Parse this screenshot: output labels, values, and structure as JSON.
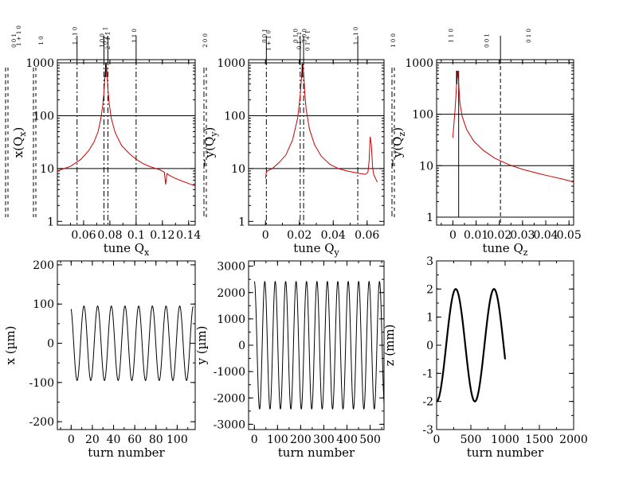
{
  "chart_data": [
    {
      "type": "line",
      "id": "qx",
      "xlabel_main": "tune Q",
      "xlabel_sub": "x",
      "ylabel_main": "x(Q",
      "ylabel_sub": "x",
      "ylabel_close": ")",
      "ylabel_bar": false,
      "xlim": [
        0.04,
        0.145
      ],
      "ylim": [
        0.85,
        1150
      ],
      "yscale": "log",
      "xticks": [
        0.06,
        0.08,
        0.1,
        0.12,
        0.14
      ],
      "xtick_labels": [
        "0.06",
        "0.08",
        "0.1",
        "0.12",
        "0.14"
      ],
      "yticks": [
        1,
        10,
        100,
        1000
      ],
      "ytick_labels": [
        "1",
        "10",
        "100",
        "1000"
      ],
      "hgrid": [
        10,
        100,
        1000
      ],
      "peak_color": "#000000",
      "series": [
        {
          "name": "spectrum",
          "color": "#cc0000",
          "x": [
            0.04,
            0.05,
            0.058,
            0.064,
            0.068,
            0.071,
            0.073,
            0.0745,
            0.0755,
            0.0762,
            0.0768,
            0.0772,
            0.0777,
            0.0785,
            0.0795,
            0.081,
            0.084,
            0.089,
            0.095,
            0.1,
            0.105,
            0.11,
            0.115,
            0.118,
            0.1215,
            0.1225,
            0.1235,
            0.125,
            0.13,
            0.135,
            0.14,
            0.145
          ],
          "y": [
            9,
            11,
            15,
            22,
            32,
            50,
            85,
            150,
            280,
            520,
            850,
            980,
            700,
            330,
            170,
            90,
            48,
            27,
            19,
            15,
            12.5,
            11,
            10,
            9.5,
            8.5,
            5,
            8,
            7.5,
            6.5,
            5.8,
            5.2,
            4.7
          ]
        }
      ],
      "peak_x": 0.0775,
      "vlines": [
        {
          "x": 0.055,
          "style": "dashdot",
          "top": true
        },
        {
          "x": 0.0755,
          "style": "dashdot",
          "top": true
        },
        {
          "x": 0.0785,
          "style": "dashdot",
          "top": true
        },
        {
          "x": 0.1,
          "style": "dashdot",
          "top": true
        }
      ],
      "outer_lines": [
        {
          "at": "left1",
          "style": "dashed"
        },
        {
          "at": "left2",
          "style": "dashed"
        }
      ],
      "reso_labels": [
        {
          "text": "0 0 1",
          "pos": "farleft1"
        },
        {
          "text": "1 + 1 0",
          "pos": "farleft2"
        },
        {
          "text": "1 0",
          "pos": "farleft3"
        },
        {
          "text": "1 - 1 0",
          "x": 0.055
        },
        {
          "text": "1 0 0",
          "x": 0.0755
        },
        {
          "text": "0 1 - 1",
          "x": 0.078
        },
        {
          "text": "2 - 1 1",
          "x": 0.08
        },
        {
          "text": "1 1 0",
          "x": 0.1
        }
      ]
    },
    {
      "type": "line",
      "id": "qy",
      "xlabel_main": "tune Q",
      "xlabel_sub": "y",
      "ylabel_main": "y(Q",
      "ylabel_sub": "y",
      "ylabel_close": ")",
      "ylabel_bar": true,
      "xlim": [
        -0.01,
        0.07
      ],
      "ylim": [
        0.85,
        1150
      ],
      "yscale": "log",
      "xticks": [
        0,
        0.02,
        0.04,
        0.06
      ],
      "xtick_labels": [
        "0",
        "0.02",
        "0.04",
        "0.06"
      ],
      "yticks": [
        1,
        10,
        100,
        1000
      ],
      "ytick_labels": [
        "1",
        "10",
        "100",
        "1000"
      ],
      "hgrid": [
        10,
        100,
        1000
      ],
      "peak_color": "#000000",
      "series": [
        {
          "name": "spectrum",
          "color": "#cc0000",
          "x": [
            0,
            0.0005,
            0.001,
            0.004,
            0.008,
            0.012,
            0.016,
            0.019,
            0.0205,
            0.0213,
            0.022,
            0.0226,
            0.0232,
            0.024,
            0.026,
            0.029,
            0.033,
            0.038,
            0.043,
            0.048,
            0.052,
            0.056,
            0.059,
            0.0605,
            0.0612,
            0.0618,
            0.0625,
            0.0633,
            0.064,
            0.065,
            0.066
          ],
          "y": [
            6.5,
            8.5,
            9,
            10,
            13,
            18,
            35,
            90,
            240,
            550,
            960,
            600,
            260,
            130,
            55,
            28,
            17,
            12,
            10,
            9,
            8.5,
            8,
            7.8,
            8.5,
            14,
            40,
            28,
            10,
            7.5,
            6.5,
            5.5
          ]
        }
      ],
      "peak_x": 0.0222,
      "vlines": [
        {
          "x": 0.0005,
          "style": "dashdot",
          "top": true
        },
        {
          "x": 0.0205,
          "style": "dashdot",
          "top": true
        },
        {
          "x": 0.0225,
          "style": "dashdot",
          "top": true
        },
        {
          "x": 0.0545,
          "style": "dashdot",
          "top": true
        }
      ],
      "outer_lines": [
        {
          "at": "left1",
          "style": "dashdot"
        }
      ],
      "reso_labels": [
        {
          "text": "2 0 0",
          "pos": "farleft1"
        },
        {
          "text": "0 0 1",
          "x": 0.0005
        },
        {
          "text": "1 + 1 0",
          "x": 0.003
        },
        {
          "text": "0 1 0",
          "x": 0.019
        },
        {
          "text": "0 1 - 1",
          "x": 0.021
        },
        {
          "text": "3 0 0",
          "x": 0.024
        },
        {
          "text": "0 1 + 1",
          "x": 0.026
        },
        {
          "text": "1 - 1 0",
          "x": 0.0545
        }
      ]
    },
    {
      "type": "line",
      "id": "qz",
      "xlabel_main": "tune Q",
      "xlabel_sub": "z",
      "ylabel_main": "y(Q",
      "ylabel_sub": "z",
      "ylabel_close": ")",
      "ylabel_bar": true,
      "xlim": [
        -0.007,
        0.052
      ],
      "ylim": [
        0.7,
        1150
      ],
      "yscale": "log",
      "xticks": [
        0,
        0.01,
        0.02,
        0.03,
        0.04,
        0.05
      ],
      "xtick_labels": [
        "0",
        "0.01",
        "0.02",
        "0.03",
        "0.04",
        "0.05"
      ],
      "yticks": [
        1,
        10,
        100,
        1000
      ],
      "ytick_labels": [
        "1",
        "10",
        "100",
        "1000"
      ],
      "hgrid": [
        1,
        10,
        100,
        1000
      ],
      "peak_color": "#000000",
      "series": [
        {
          "name": "spectrum",
          "color": "#cc0000",
          "x": [
            0,
            0.0005,
            0.001,
            0.0015,
            0.002,
            0.0025,
            0.003,
            0.004,
            0.006,
            0.009,
            0.013,
            0.018,
            0.024,
            0.03,
            0.036,
            0.042,
            0.048,
            0.052
          ],
          "y": [
            35,
            70,
            130,
            320,
            700,
            400,
            170,
            90,
            50,
            30,
            20,
            14,
            10.5,
            8.5,
            7.2,
            6.2,
            5.4,
            4.8
          ]
        }
      ],
      "peak_x": 0.002,
      "vlines": [
        {
          "x": 0.0025,
          "style": "solid-to-peak",
          "top": false
        },
        {
          "x": 0.0205,
          "style": "dashed",
          "top": true
        }
      ],
      "outer_lines": [
        {
          "at": "left1",
          "style": "dashdot"
        }
      ],
      "reso_labels": [
        {
          "text": "1 0 0",
          "pos": "farleft1"
        },
        {
          "text": "1 1 0",
          "x": 0.0
        },
        {
          "text": "0 0 1",
          "x": 0.0155
        },
        {
          "text": "0 1 0",
          "x": 0.0335
        }
      ]
    },
    {
      "type": "line",
      "id": "tx",
      "xlabel_main": "turn number",
      "xlabel_sub": "",
      "ylabel_main": "x (µm)",
      "ylabel_sub": "",
      "ylabel_close": "",
      "ylabel_bar": false,
      "xlim": [
        -13,
        117
      ],
      "ylim": [
        -220,
        210
      ],
      "yscale": "linear",
      "xticks": [
        0,
        20,
        40,
        60,
        80,
        100
      ],
      "xtick_labels": [
        "0",
        "20",
        "40",
        "60",
        "80",
        "100"
      ],
      "yticks": [
        -200,
        -100,
        0,
        100,
        200
      ],
      "ytick_labels": [
        "-200",
        "-100",
        "0",
        "100",
        "200"
      ],
      "hgrid": [],
      "oscillation": {
        "amplitude": 95,
        "tune": 0.0775,
        "phase": 0.4,
        "n_turns": 115,
        "offset": 0,
        "color": "#000000"
      }
    },
    {
      "type": "line",
      "id": "ty",
      "xlabel_main": "turn number",
      "xlabel_sub": "",
      "ylabel_main": "y (µm)",
      "ylabel_sub": "",
      "ylabel_close": "",
      "ylabel_bar": false,
      "xlim": [
        -25,
        560
      ],
      "ylim": [
        -3200,
        3200
      ],
      "yscale": "linear",
      "xticks": [
        0,
        100,
        200,
        300,
        400,
        500
      ],
      "xtick_labels": [
        "0",
        "100",
        "200",
        "300",
        "400",
        "500"
      ],
      "yticks": [
        -3000,
        -2000,
        -1000,
        0,
        1000,
        2000,
        3000
      ],
      "ytick_labels": [
        "-3000",
        "-2000",
        "-1000",
        "0",
        "1000",
        "2000",
        "3000"
      ],
      "hgrid": [],
      "oscillation": {
        "amplitude": 2420,
        "tune": 0.0222,
        "phase": 0.0,
        "n_turns": 560,
        "offset": 0,
        "color": "#000000"
      }
    },
    {
      "type": "line",
      "id": "tz",
      "xlabel_main": "turn number",
      "xlabel_sub": "",
      "ylabel_main": "z (mm)",
      "ylabel_sub": "",
      "ylabel_close": "",
      "ylabel_bar": false,
      "xlim": [
        0,
        2000
      ],
      "ylim": [
        -3,
        3
      ],
      "yscale": "linear",
      "xticks": [
        0,
        500,
        1000,
        1500,
        2000
      ],
      "xtick_labels": [
        "0",
        "500",
        "1000",
        "1500",
        "2000"
      ],
      "yticks": [
        -3,
        -2,
        -1,
        0,
        1,
        2,
        3
      ],
      "ytick_labels": [
        "-3",
        "-2",
        "-1",
        "0",
        "1",
        "2",
        "3"
      ],
      "hgrid": [],
      "oscillation": {
        "amplitude": 2.0,
        "tune": 0.00179,
        "phase": 3.14159,
        "n_turns": 1000,
        "offset": 0,
        "color": "#000000",
        "thick": true
      }
    }
  ]
}
